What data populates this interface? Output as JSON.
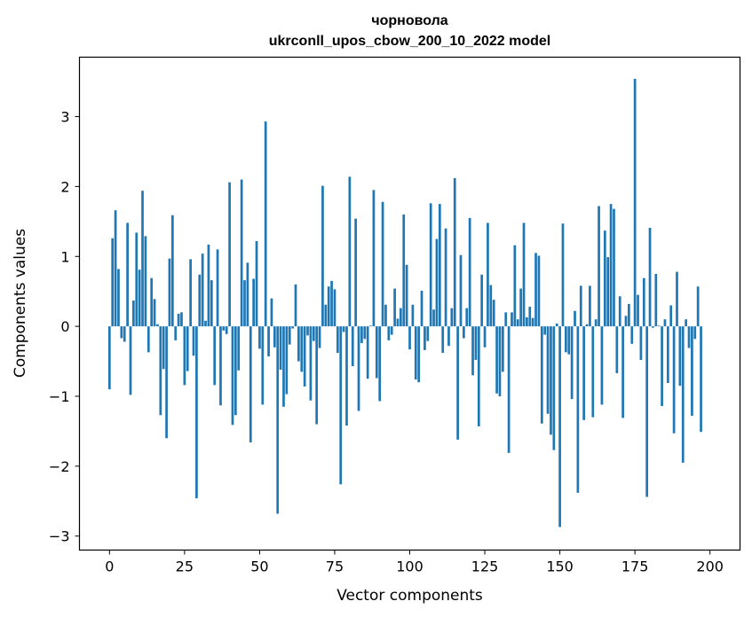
{
  "chart_data": {
    "type": "bar",
    "title": "чорновола",
    "subtitle": "ukrconll_upos_cbow_200_10_2022 model",
    "xlabel": "Vector components",
    "ylabel": "Components values",
    "xlim": [
      -10,
      210
    ],
    "ylim": [
      -3.2,
      3.85
    ],
    "xticks": [
      0,
      25,
      50,
      75,
      100,
      125,
      150,
      175,
      200
    ],
    "yticks": [
      -3,
      -2,
      -1,
      0,
      1,
      2,
      3
    ],
    "xtick_labels": [
      "0",
      "25",
      "50",
      "75",
      "100",
      "125",
      "150",
      "175",
      "200"
    ],
    "ytick_labels": [
      "−3",
      "−2",
      "−1",
      "0",
      "1",
      "2",
      "3"
    ],
    "bar_color": "#1f77b4",
    "grid": false,
    "values": [
      -0.9,
      1.26,
      1.66,
      0.82,
      -0.17,
      -0.22,
      1.48,
      -0.98,
      0.37,
      1.34,
      0.81,
      1.94,
      1.29,
      -0.37,
      0.69,
      0.39,
      0.03,
      -1.27,
      -0.61,
      -1.6,
      0.97,
      1.59,
      -0.2,
      0.18,
      0.2,
      -0.84,
      -0.64,
      0.96,
      -0.42,
      -2.46,
      0.74,
      1.04,
      0.08,
      1.17,
      0.66,
      -0.84,
      1.1,
      -1.13,
      -0.06,
      -0.11,
      2.06,
      -1.41,
      -1.27,
      -0.63,
      2.1,
      0.66,
      0.91,
      -1.66,
      0.68,
      1.22,
      -0.32,
      -1.12,
      2.93,
      -0.43,
      0.4,
      -0.3,
      -2.68,
      -0.62,
      -1.15,
      -0.97,
      -0.26,
      -0.03,
      0.6,
      -0.5,
      -0.65,
      -0.86,
      -0.13,
      -1.06,
      -0.21,
      -1.4,
      -0.31,
      2.01,
      0.31,
      0.57,
      0.65,
      0.53,
      -0.38,
      -2.26,
      -0.08,
      -1.42,
      2.14,
      -0.57,
      1.54,
      -1.21,
      -0.24,
      -0.18,
      -0.75,
      0.01,
      1.95,
      -0.74,
      -1.07,
      1.78,
      0.31,
      -0.2,
      -0.12,
      0.54,
      0.11,
      0.26,
      1.6,
      0.88,
      -0.33,
      0.31,
      -0.76,
      -0.8,
      0.51,
      -0.34,
      -0.21,
      1.76,
      0.24,
      1.25,
      1.75,
      -0.38,
      1.4,
      -0.28,
      0.26,
      2.12,
      -1.62,
      1.02,
      -0.17,
      0.26,
      1.55,
      -0.7,
      -0.48,
      -1.43,
      0.74,
      -0.3,
      1.48,
      0.59,
      0.38,
      -0.96,
      -1.0,
      -0.65,
      0.2,
      -1.81,
      0.2,
      1.16,
      0.1,
      0.54,
      1.48,
      0.13,
      0.28,
      0.12,
      1.05,
      1.01,
      -1.39,
      -0.12,
      -1.25,
      -1.55,
      -1.77,
      0.04,
      -2.87,
      1.47,
      -0.37,
      -0.4,
      -1.04,
      0.22,
      -2.38,
      0.58,
      -1.34,
      0.03,
      0.58,
      -1.3,
      0.1,
      1.72,
      -1.12,
      1.37,
      0.99,
      1.75,
      1.68,
      -0.67,
      0.43,
      -1.31,
      0.15,
      0.32,
      -0.25,
      3.54,
      0.45,
      -0.48,
      0.69,
      -2.44,
      1.41,
      -0.02,
      0.75,
      0.01,
      -1.14,
      0.1,
      -0.81,
      0.3,
      -1.53,
      0.78,
      -0.85,
      -1.95,
      0.1,
      -0.31,
      -1.28,
      -0.18,
      0.57,
      -1.51
    ]
  }
}
